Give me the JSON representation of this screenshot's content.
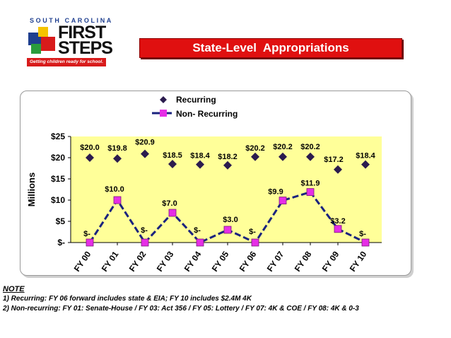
{
  "logo": {
    "top_text": "SOUTH CAROLINA",
    "word1": "FIRST",
    "word2": "STEPS",
    "tagline": "Getting children ready for school.",
    "colors": [
      "#1f3f8f",
      "#f5c400",
      "#d81b1b",
      "#2a9c3c"
    ]
  },
  "title": "State-Level  Appropriations",
  "chart_data": {
    "type": "line",
    "categories": [
      "FY 00",
      "FY 01",
      "FY 02",
      "FY 03",
      "FY 04",
      "FY 05",
      "FY 06",
      "FY 07",
      "FY 08",
      "FY 09",
      "FY 10"
    ],
    "ylabel": "Millions",
    "ylim": [
      0,
      25
    ],
    "yticks": [
      {
        "value": 0,
        "label": "$-"
      },
      {
        "value": 5,
        "label": "$5"
      },
      {
        "value": 10,
        "label": "$10"
      },
      {
        "value": 15,
        "label": "$15"
      },
      {
        "value": 20,
        "label": "$20"
      },
      {
        "value": 25,
        "label": "$25"
      }
    ],
    "legend_position": "top",
    "series": [
      {
        "name": "Recurring",
        "marker": "diamond",
        "line": "none",
        "color": "#2b1b4e",
        "values": [
          20.0,
          19.8,
          20.9,
          18.5,
          18.4,
          18.2,
          20.2,
          20.2,
          20.2,
          17.2,
          18.4
        ],
        "labels": [
          "$20.0",
          "$19.8",
          "$20.9",
          "$18.5",
          "$18.4",
          "$18.2",
          "$20.2",
          "$20.2",
          "$20.2",
          "$17.2",
          "$18.4"
        ]
      },
      {
        "name": "Non- Recurring",
        "marker": "square",
        "line": "dashed",
        "color": "#e62ee6",
        "line_color": "#1a237e",
        "values": [
          0,
          10.0,
          0,
          7.0,
          0,
          3.0,
          0,
          9.9,
          11.9,
          3.2,
          0
        ],
        "labels": [
          "$-",
          "$10.0",
          "$-",
          "$7.0",
          "$-",
          "$3.0",
          "$-",
          "$9.9",
          "$11.9",
          "$3.2",
          "$-"
        ]
      }
    ],
    "plot_background": "#ffff99",
    "grid": false
  },
  "notes": {
    "heading": "NOTE",
    "lines": [
      "1)  Recurring:  FY 06 forward includes state & EIA; FY 10 includes $2.4M 4K",
      "2)  Non-recurring:  FY 01: Senate-House  /  FY 03:  Act 356  /  FY 05: Lottery  /  FY 07: 4K & COE  /  FY 08: 4K & 0-3"
    ]
  }
}
